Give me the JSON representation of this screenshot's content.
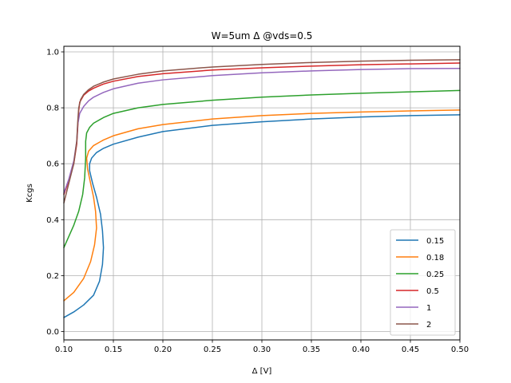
{
  "chart_data": {
    "type": "line",
    "title": "W=5um Δ @vds=0.5",
    "xlabel": "Δ [V]",
    "ylabel": "Kcgs",
    "xlim": [
      0.1,
      0.5
    ],
    "ylim": [
      -0.03,
      1.02
    ],
    "xticks": [
      "0.10",
      "0.15",
      "0.20",
      "0.25",
      "0.30",
      "0.35",
      "0.40",
      "0.45",
      "0.50"
    ],
    "yticks": [
      "0.0",
      "0.2",
      "0.4",
      "0.6",
      "0.8",
      "1.0"
    ],
    "grid": true,
    "legend_position": "lower-right",
    "series": [
      {
        "name": "0.15",
        "color": "#1f77b4",
        "points": [
          [
            0.1,
            0.05
          ],
          [
            0.11,
            0.07
          ],
          [
            0.12,
            0.095
          ],
          [
            0.13,
            0.13
          ],
          [
            0.136,
            0.18
          ],
          [
            0.139,
            0.24
          ],
          [
            0.14,
            0.3
          ],
          [
            0.139,
            0.36
          ],
          [
            0.137,
            0.42
          ],
          [
            0.133,
            0.48
          ],
          [
            0.129,
            0.53
          ],
          [
            0.126,
            0.575
          ],
          [
            0.126,
            0.6
          ],
          [
            0.128,
            0.62
          ],
          [
            0.133,
            0.64
          ],
          [
            0.14,
            0.655
          ],
          [
            0.15,
            0.67
          ],
          [
            0.175,
            0.695
          ],
          [
            0.2,
            0.715
          ],
          [
            0.25,
            0.737
          ],
          [
            0.3,
            0.75
          ],
          [
            0.35,
            0.76
          ],
          [
            0.4,
            0.767
          ],
          [
            0.45,
            0.772
          ],
          [
            0.5,
            0.775
          ]
        ]
      },
      {
        "name": "0.18",
        "color": "#ff7f0e",
        "points": [
          [
            0.1,
            0.11
          ],
          [
            0.11,
            0.14
          ],
          [
            0.12,
            0.19
          ],
          [
            0.127,
            0.25
          ],
          [
            0.131,
            0.31
          ],
          [
            0.133,
            0.37
          ],
          [
            0.132,
            0.43
          ],
          [
            0.13,
            0.48
          ],
          [
            0.127,
            0.53
          ],
          [
            0.124,
            0.58
          ],
          [
            0.123,
            0.62
          ],
          [
            0.125,
            0.645
          ],
          [
            0.13,
            0.665
          ],
          [
            0.14,
            0.685
          ],
          [
            0.15,
            0.7
          ],
          [
            0.175,
            0.725
          ],
          [
            0.2,
            0.74
          ],
          [
            0.25,
            0.76
          ],
          [
            0.3,
            0.772
          ],
          [
            0.35,
            0.78
          ],
          [
            0.4,
            0.785
          ],
          [
            0.45,
            0.789
          ],
          [
            0.5,
            0.792
          ]
        ]
      },
      {
        "name": "0.25",
        "color": "#2ca02c",
        "points": [
          [
            0.1,
            0.3
          ],
          [
            0.105,
            0.34
          ],
          [
            0.11,
            0.38
          ],
          [
            0.115,
            0.43
          ],
          [
            0.119,
            0.49
          ],
          [
            0.121,
            0.55
          ],
          [
            0.122,
            0.62
          ],
          [
            0.122,
            0.68
          ],
          [
            0.123,
            0.71
          ],
          [
            0.126,
            0.73
          ],
          [
            0.13,
            0.745
          ],
          [
            0.14,
            0.765
          ],
          [
            0.15,
            0.78
          ],
          [
            0.175,
            0.8
          ],
          [
            0.2,
            0.812
          ],
          [
            0.25,
            0.827
          ],
          [
            0.3,
            0.838
          ],
          [
            0.35,
            0.846
          ],
          [
            0.4,
            0.852
          ],
          [
            0.45,
            0.857
          ],
          [
            0.5,
            0.862
          ]
        ]
      },
      {
        "name": "0.5",
        "color": "#d62728",
        "points": [
          [
            0.1,
            0.49
          ],
          [
            0.105,
            0.54
          ],
          [
            0.11,
            0.6
          ],
          [
            0.113,
            0.67
          ],
          [
            0.114,
            0.73
          ],
          [
            0.115,
            0.79
          ],
          [
            0.116,
            0.82
          ],
          [
            0.12,
            0.845
          ],
          [
            0.125,
            0.86
          ],
          [
            0.13,
            0.87
          ],
          [
            0.14,
            0.885
          ],
          [
            0.15,
            0.895
          ],
          [
            0.175,
            0.912
          ],
          [
            0.2,
            0.922
          ],
          [
            0.25,
            0.935
          ],
          [
            0.3,
            0.943
          ],
          [
            0.35,
            0.949
          ],
          [
            0.4,
            0.954
          ],
          [
            0.45,
            0.957
          ],
          [
            0.5,
            0.96
          ]
        ]
      },
      {
        "name": "1",
        "color": "#9467bd",
        "points": [
          [
            0.1,
            0.495
          ],
          [
            0.105,
            0.545
          ],
          [
            0.11,
            0.61
          ],
          [
            0.113,
            0.68
          ],
          [
            0.114,
            0.74
          ],
          [
            0.116,
            0.78
          ],
          [
            0.12,
            0.805
          ],
          [
            0.125,
            0.825
          ],
          [
            0.13,
            0.838
          ],
          [
            0.14,
            0.855
          ],
          [
            0.15,
            0.868
          ],
          [
            0.175,
            0.888
          ],
          [
            0.2,
            0.9
          ],
          [
            0.25,
            0.915
          ],
          [
            0.3,
            0.925
          ],
          [
            0.35,
            0.932
          ],
          [
            0.4,
            0.937
          ],
          [
            0.45,
            0.94
          ],
          [
            0.5,
            0.941
          ]
        ]
      },
      {
        "name": "2",
        "color": "#8c564b",
        "points": [
          [
            0.1,
            0.46
          ],
          [
            0.105,
            0.53
          ],
          [
            0.11,
            0.6
          ],
          [
            0.113,
            0.68
          ],
          [
            0.114,
            0.75
          ],
          [
            0.115,
            0.8
          ],
          [
            0.117,
            0.83
          ],
          [
            0.12,
            0.848
          ],
          [
            0.125,
            0.865
          ],
          [
            0.13,
            0.877
          ],
          [
            0.14,
            0.892
          ],
          [
            0.15,
            0.903
          ],
          [
            0.175,
            0.92
          ],
          [
            0.2,
            0.932
          ],
          [
            0.25,
            0.946
          ],
          [
            0.3,
            0.955
          ],
          [
            0.35,
            0.962
          ],
          [
            0.4,
            0.967
          ],
          [
            0.45,
            0.97
          ],
          [
            0.5,
            0.972
          ]
        ]
      }
    ]
  }
}
